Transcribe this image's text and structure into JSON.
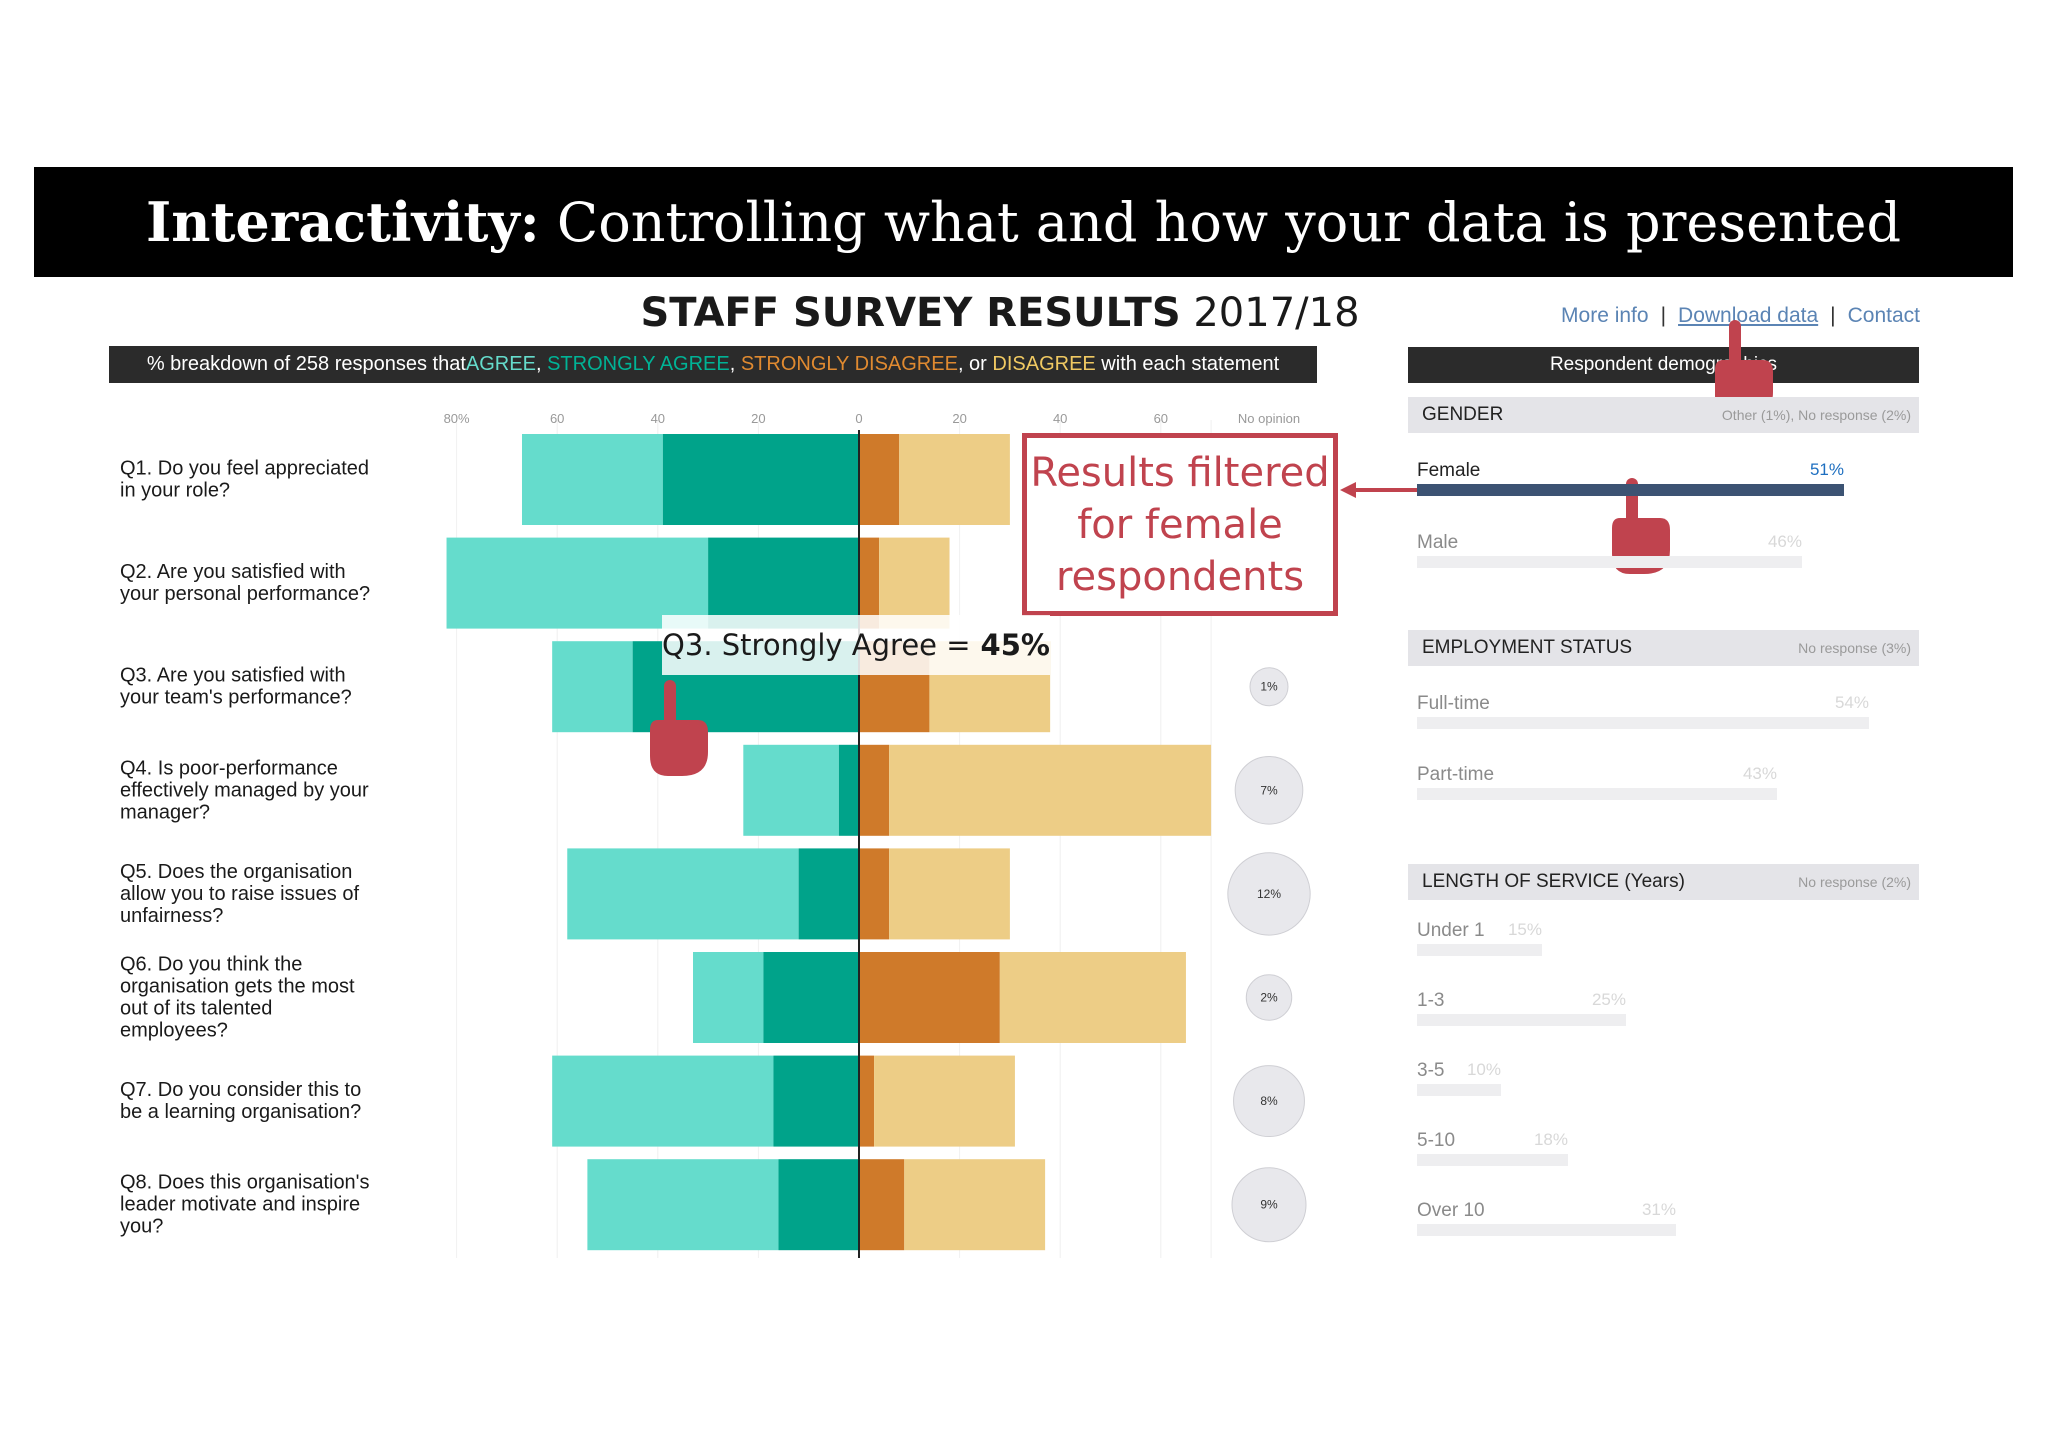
{
  "banner": {
    "bold": "Interactivity:",
    "rest": " Controlling what and how your data is presented"
  },
  "survey_title": {
    "bold": "STAFF SURVEY RESULTS",
    "year": " 2017/18"
  },
  "links": {
    "more_info": "More info",
    "sep1": "|",
    "download": "Download data",
    "sep2": "|",
    "contact": "Contact"
  },
  "subtitle": {
    "prefix": "% breakdown of 258 responses that ",
    "agree": "AGREE",
    "c1": ", ",
    "strongly_agree": "STRONGLY AGREE",
    "c2": ", ",
    "strongly_disagree": "STRONGLY DISAGREE",
    "c3": ", or ",
    "disagree": "DISAGREE",
    "suffix": " with each statement"
  },
  "colors": {
    "agree": "#65dccc",
    "strongly_agree": "#00a38a",
    "strongly_disagree": "#cf7a2a",
    "disagree": "#edcd86",
    "highlight": "#c0434e",
    "active_bar": "#3c5373"
  },
  "chart_data": {
    "type": "bar",
    "orientation": "horizontal-diverging",
    "x_ticks_left": [
      "80%",
      "60",
      "40",
      "20"
    ],
    "x_tick_center": "0",
    "x_ticks_right": [
      "20",
      "40",
      "60"
    ],
    "no_opinion_label": "No opinion",
    "xlim": [
      -80,
      70
    ],
    "series": [
      {
        "name": "AGREE",
        "side": "left",
        "values": [
          28,
          52,
          16,
          19,
          46,
          14,
          44,
          38
        ]
      },
      {
        "name": "STRONGLY AGREE",
        "side": "left",
        "values": [
          39,
          30,
          45,
          4,
          12,
          19,
          17,
          16
        ]
      },
      {
        "name": "STRONGLY DISAGREE",
        "side": "right",
        "values": [
          8,
          4,
          14,
          6,
          6,
          28,
          3,
          9
        ]
      },
      {
        "name": "DISAGREE",
        "side": "right",
        "values": [
          22,
          14,
          24,
          64,
          24,
          37,
          28,
          28
        ]
      }
    ],
    "questions": [
      "Q1. Do you feel appreciated in your role?",
      "Q2. Are you satisfied with your personal performance?",
      "Q3. Are you satisfied with your team's performance?",
      "Q4. Is poor-performance effectively managed by your manager?",
      "Q5. Does the organisation allow you to raise issues of unfairness?",
      "Q6. Do you think the organisation gets the most out of its talented employees?",
      "Q7. Do you consider this to be a learning organisation?",
      "Q8. Does this organisation's leader motivate and inspire you?"
    ],
    "no_opinion": [
      "",
      "",
      "1%",
      "7%",
      "12%",
      "2%",
      "8%",
      "9%"
    ],
    "no_opinion_values": [
      0,
      0,
      1,
      7,
      12,
      2,
      8,
      9
    ]
  },
  "tooltip": {
    "label": "Q3. Strongly Agree =",
    "value": "45%"
  },
  "callout": {
    "line1": "Results filtered",
    "line2": "for female",
    "line3": "respondents"
  },
  "panel": {
    "title": "Respondent demographics",
    "sections": [
      {
        "title": "GENDER",
        "note": "Other (1%), No response (2%)",
        "items": [
          {
            "label": "Female",
            "pct": "51%",
            "value": 51,
            "active": true
          },
          {
            "label": "Male",
            "pct": "46%",
            "value": 46,
            "active": false
          }
        ]
      },
      {
        "title": "EMPLOYMENT STATUS",
        "note": "No response (3%)",
        "items": [
          {
            "label": "Full-time",
            "pct": "54%",
            "value": 54,
            "active": false
          },
          {
            "label": "Part-time",
            "pct": "43%",
            "value": 43,
            "active": false
          }
        ]
      },
      {
        "title": "LENGTH OF SERVICE (Years)",
        "note": "No response (2%)",
        "items": [
          {
            "label": "Under 1",
            "pct": "15%",
            "value": 15,
            "active": false
          },
          {
            "label": "1-3",
            "pct": "25%",
            "value": 25,
            "active": false
          },
          {
            "label": "3-5",
            "pct": "10%",
            "value": 10,
            "active": false
          },
          {
            "label": "5-10",
            "pct": "18%",
            "value": 18,
            "active": false
          },
          {
            "label": "Over 10",
            "pct": "31%",
            "value": 31,
            "active": false
          }
        ]
      }
    ]
  }
}
